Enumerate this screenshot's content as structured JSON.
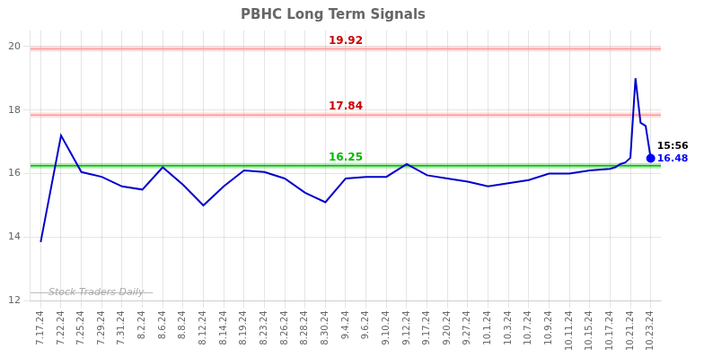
{
  "chart_data": {
    "type": "line",
    "title": "PBHC Long Term Signals",
    "x": [
      0,
      1,
      2,
      3,
      4,
      5,
      6,
      7,
      8,
      9,
      10,
      11,
      12,
      13,
      14,
      15,
      16,
      17,
      18,
      19,
      20,
      21,
      22,
      23,
      24,
      25,
      26,
      27,
      28,
      28.25,
      28.5,
      28.75,
      29,
      29.25,
      29.5,
      29.75,
      30
    ],
    "values": [
      13.85,
      17.2,
      16.05,
      15.9,
      15.6,
      15.5,
      16.2,
      15.65,
      15.0,
      15.6,
      16.1,
      16.05,
      15.85,
      15.4,
      15.1,
      15.85,
      15.9,
      15.9,
      16.3,
      15.95,
      15.85,
      15.75,
      15.6,
      15.7,
      15.8,
      16.0,
      16.0,
      16.1,
      16.15,
      16.2,
      16.3,
      16.35,
      16.5,
      19.0,
      17.6,
      17.5,
      16.48
    ],
    "color": "#0000cc",
    "xlim": [
      -0.5,
      30.5
    ],
    "xticks": [
      {
        "value": 0,
        "label": "7.17.24"
      },
      {
        "value": 1,
        "label": "7.22.24"
      },
      {
        "value": 2,
        "label": "7.25.24"
      },
      {
        "value": 3,
        "label": "7.29.24"
      },
      {
        "value": 4,
        "label": "7.31.24"
      },
      {
        "value": 5,
        "label": "8.2.24"
      },
      {
        "value": 6,
        "label": "8.6.24"
      },
      {
        "value": 7,
        "label": "8.8.24"
      },
      {
        "value": 8,
        "label": "8.12.24"
      },
      {
        "value": 9,
        "label": "8.14.24"
      },
      {
        "value": 10,
        "label": "8.19.24"
      },
      {
        "value": 11,
        "label": "8.23.24"
      },
      {
        "value": 12,
        "label": "8.26.24"
      },
      {
        "value": 13,
        "label": "8.28.24"
      },
      {
        "value": 14,
        "label": "8.30.24"
      },
      {
        "value": 15,
        "label": "9.4.24"
      },
      {
        "value": 16,
        "label": "9.6.24"
      },
      {
        "value": 17,
        "label": "9.10.24"
      },
      {
        "value": 18,
        "label": "9.12.24"
      },
      {
        "value": 19,
        "label": "9.17.24"
      },
      {
        "value": 20,
        "label": "9.20.24"
      },
      {
        "value": 21,
        "label": "9.27.24"
      },
      {
        "value": 22,
        "label": "10.1.24"
      },
      {
        "value": 23,
        "label": "10.3.24"
      },
      {
        "value": 24,
        "label": "10.7.24"
      },
      {
        "value": 25,
        "label": "10.9.24"
      },
      {
        "value": 26,
        "label": "10.11.24"
      },
      {
        "value": 27,
        "label": "10.15.24"
      },
      {
        "value": 28,
        "label": "10.17.24"
      },
      {
        "value": 29,
        "label": "10.21.24"
      },
      {
        "value": 30,
        "label": "10.23.24"
      }
    ],
    "ylim": [
      12,
      20.5
    ],
    "yticks": [
      12,
      14,
      16,
      18,
      20
    ],
    "grid": true,
    "hlines": [
      {
        "value": 19.92,
        "label": "19.92",
        "color": "#ff9999",
        "label_color": "#cc0000"
      },
      {
        "value": 17.84,
        "label": "17.84",
        "color": "#ff9999",
        "label_color": "#cc0000"
      },
      {
        "value": 16.25,
        "label": "16.25",
        "color": "#00bb00",
        "label_color": "#00bb00"
      }
    ],
    "end_marker": {
      "color": "#0000ff",
      "time_label": "15:56",
      "price_label": "16.48"
    },
    "watermark": "Stock Traders Daily"
  }
}
